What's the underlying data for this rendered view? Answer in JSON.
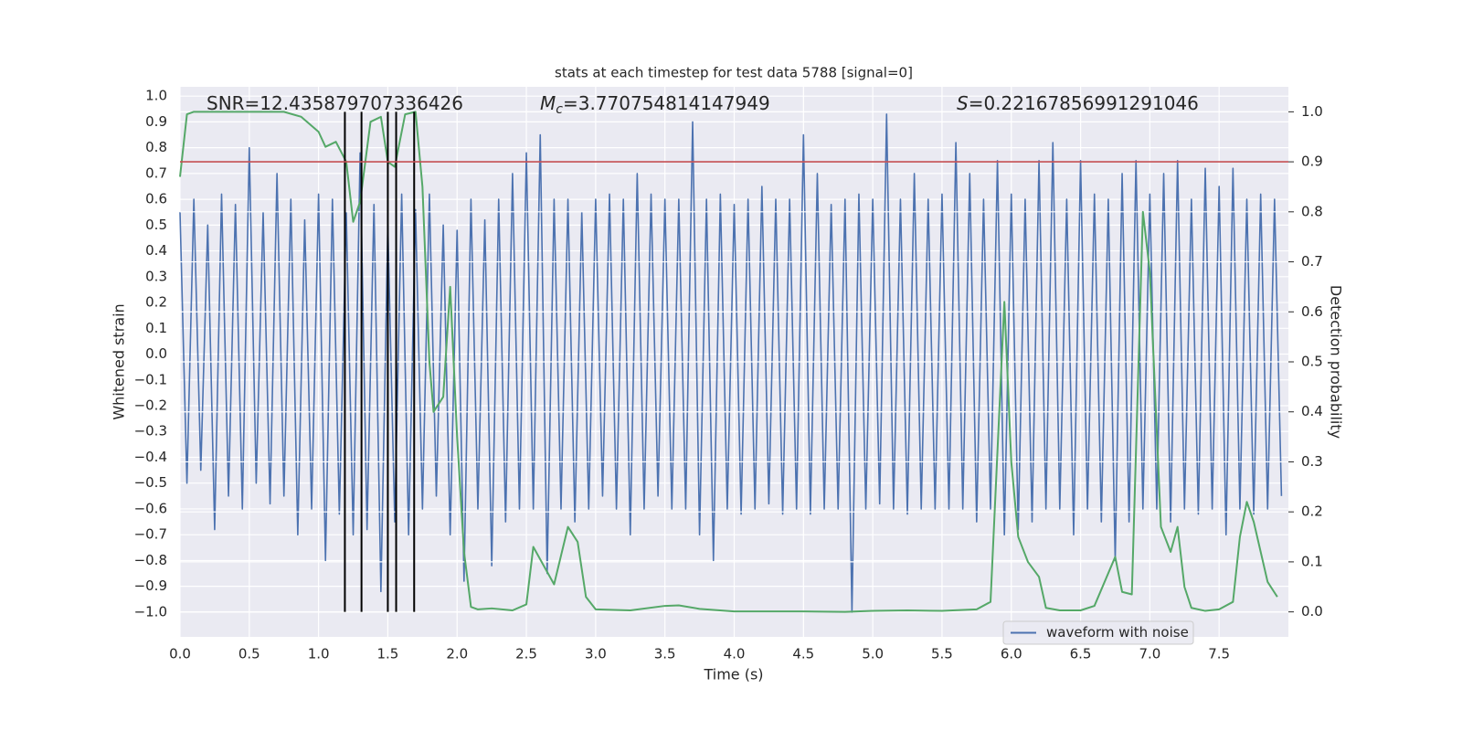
{
  "chart_data": {
    "type": "line",
    "title": "stats at each timestep for test data 5788 [signal=0]",
    "xlabel": "Time (s)",
    "ylabel": "Whitened strain",
    "y2label": "Detection probability",
    "xlim": [
      0,
      8
    ],
    "ylim": [
      -1.096,
      1.036
    ],
    "y2lim": [
      -0.05,
      1.05
    ],
    "xticks": [
      {
        "value": 0,
        "label": "0.0"
      },
      0.5,
      {
        "value": 1,
        "label": "1.0"
      },
      1.5,
      {
        "value": 2,
        "label": "2.0"
      },
      2.5,
      {
        "value": 3,
        "label": "3.0"
      },
      3.5,
      {
        "value": 4,
        "label": "4.0"
      },
      4.5,
      {
        "value": 5,
        "label": "5.0"
      },
      5.5,
      {
        "value": 6,
        "label": "6.0"
      },
      6.5,
      {
        "value": 7,
        "label": "7.0"
      },
      7.5
    ],
    "yticks": [
      {
        "value": -1,
        "label": "−1.0"
      },
      {
        "value": -0.9,
        "label": "−0.9"
      },
      {
        "value": -0.8,
        "label": "−0.8"
      },
      {
        "value": -0.7,
        "label": "−0.7"
      },
      {
        "value": -0.6,
        "label": "−0.6"
      },
      {
        "value": -0.5,
        "label": "−0.5"
      },
      {
        "value": -0.4,
        "label": "−0.4"
      },
      {
        "value": -0.3,
        "label": "−0.3"
      },
      {
        "value": -0.2,
        "label": "−0.2"
      },
      {
        "value": -0.1,
        "label": "−0.1"
      },
      {
        "value": 0,
        "label": "0.0"
      },
      0.1,
      0.2,
      0.3,
      0.4,
      0.5,
      0.6,
      0.7,
      0.8,
      0.9,
      {
        "value": 1,
        "label": "1.0"
      }
    ],
    "y2ticks": [
      {
        "value": 0,
        "label": "0.0"
      },
      0.1,
      0.2,
      0.3,
      0.4,
      0.5,
      0.6,
      0.7,
      0.8,
      0.9,
      {
        "value": 1,
        "label": "1.0"
      }
    ],
    "grid": true,
    "background": "#eaeaf2",
    "legend": "lower right",
    "series": [
      {
        "name": "waveform with noise",
        "color": "#4c72b0",
        "x": [
          0,
          0.05,
          0.1,
          0.15,
          0.2,
          0.25,
          0.3,
          0.35,
          0.4,
          0.45,
          0.5,
          0.55,
          0.6,
          0.65,
          0.7,
          0.75,
          0.8,
          0.85,
          0.9,
          0.95,
          1,
          1.05,
          1.1,
          1.15,
          1.2,
          1.25,
          1.3,
          1.35,
          1.4,
          1.45,
          1.5,
          1.55,
          1.6,
          1.65,
          1.7,
          1.75,
          1.8,
          1.85,
          1.9,
          1.95,
          2,
          2.05,
          2.1,
          2.15,
          2.2,
          2.25,
          2.3,
          2.35,
          2.4,
          2.45,
          2.5,
          2.55,
          2.6,
          2.65,
          2.7,
          2.75,
          2.8,
          2.85,
          2.9,
          2.95,
          3,
          3.05,
          3.1,
          3.15,
          3.2,
          3.25,
          3.3,
          3.35,
          3.4,
          3.45,
          3.5,
          3.55,
          3.6,
          3.65,
          3.7,
          3.75,
          3.8,
          3.85,
          3.9,
          3.95,
          4,
          4.05,
          4.1,
          4.15,
          4.2,
          4.25,
          4.3,
          4.35,
          4.4,
          4.45,
          4.5,
          4.55,
          4.6,
          4.65,
          4.7,
          4.75,
          4.8,
          4.85,
          4.9,
          4.95,
          5,
          5.05,
          5.1,
          5.15,
          5.2,
          5.25,
          5.3,
          5.35,
          5.4,
          5.45,
          5.5,
          5.55,
          5.6,
          5.65,
          5.7,
          5.75,
          5.8,
          5.85,
          5.9,
          5.95,
          6,
          6.05,
          6.1,
          6.15,
          6.2,
          6.25,
          6.3,
          6.35,
          6.4,
          6.45,
          6.5,
          6.55,
          6.6,
          6.65,
          6.7,
          6.75,
          6.8,
          6.85,
          6.9,
          6.95,
          7,
          7.05,
          7.1,
          7.15,
          7.2,
          7.25,
          7.3,
          7.35,
          7.4,
          7.45,
          7.5,
          7.55,
          7.6,
          7.65,
          7.7,
          7.75,
          7.8,
          7.85,
          7.9,
          7.95
        ],
        "values": [
          0.55,
          -0.5,
          0.6,
          -0.45,
          0.5,
          -0.68,
          0.62,
          -0.55,
          0.58,
          -0.6,
          0.8,
          -0.5,
          0.55,
          -0.58,
          0.7,
          -0.55,
          0.6,
          -0.7,
          0.52,
          -0.6,
          0.62,
          -0.8,
          0.6,
          -0.62,
          0.55,
          -0.7,
          0.78,
          -0.68,
          0.58,
          -0.92,
          0.5,
          -0.65,
          0.62,
          -0.7,
          0.56,
          -0.6,
          0.62,
          -0.55,
          0.5,
          -0.7,
          0.48,
          -0.88,
          0.6,
          -0.6,
          0.52,
          -0.82,
          0.6,
          -0.65,
          0.7,
          -0.6,
          0.78,
          -0.6,
          0.85,
          -0.85,
          0.6,
          -0.6,
          0.6,
          -0.65,
          0.55,
          -0.6,
          0.6,
          -0.55,
          0.62,
          -0.6,
          0.6,
          -0.7,
          0.7,
          -0.6,
          0.62,
          -0.55,
          0.6,
          -0.6,
          0.6,
          -0.6,
          0.9,
          -0.7,
          0.6,
          -0.8,
          0.62,
          -0.6,
          0.58,
          -0.62,
          0.6,
          -0.6,
          0.65,
          -0.58,
          0.6,
          -0.62,
          0.6,
          -0.6,
          0.85,
          -0.62,
          0.7,
          -0.6,
          0.58,
          -0.6,
          0.6,
          -1.0,
          0.62,
          -0.6,
          0.6,
          -0.58,
          0.93,
          -0.6,
          0.6,
          -0.62,
          0.7,
          -0.6,
          0.6,
          -0.6,
          0.62,
          -0.6,
          0.82,
          -0.6,
          0.7,
          -0.65,
          0.6,
          -0.6,
          0.75,
          -0.7,
          0.62,
          -0.68,
          0.6,
          -0.65,
          0.75,
          -0.6,
          0.82,
          -0.6,
          0.6,
          -0.7,
          0.75,
          -0.6,
          0.62,
          -0.65,
          0.6,
          -0.8,
          0.7,
          -0.65,
          0.75,
          -0.6,
          0.62,
          -0.6,
          0.7,
          -0.65,
          0.75,
          -0.6,
          0.6,
          -0.62,
          0.72,
          -0.6,
          0.65,
          -0.7,
          0.72,
          -0.6,
          0.6,
          -0.62,
          0.62,
          -0.6,
          0.6,
          -0.55
        ]
      },
      {
        "color": "#55a868",
        "axis": "y2",
        "x": [
          0,
          0.05,
          0.1,
          0.2,
          0.75,
          0.875,
          1,
          1.05,
          1.125,
          1.2,
          1.25,
          1.3,
          1.375,
          1.45,
          1.5,
          1.55,
          1.625,
          1.7,
          1.75,
          1.8,
          1.83,
          1.9,
          1.95,
          2,
          2.05,
          2.1,
          2.15,
          2.25,
          2.4,
          2.5,
          2.55,
          2.65,
          2.7,
          2.8,
          2.87,
          2.93,
          3,
          3.25,
          3.5,
          3.6,
          3.75,
          4,
          4.5,
          4.8,
          5,
          5.25,
          5.5,
          5.75,
          5.85,
          5.95,
          6,
          6.05,
          6.12,
          6.2,
          6.25,
          6.35,
          6.5,
          6.6,
          6.75,
          6.8,
          6.87,
          6.95,
          7,
          7.08,
          7.15,
          7.2,
          7.25,
          7.3,
          7.4,
          7.5,
          7.6,
          7.65,
          7.7,
          7.75,
          7.85,
          7.92
        ],
        "values": [
          0.87,
          0.995,
          1.0,
          1.0,
          1.0,
          0.99,
          0.96,
          0.93,
          0.94,
          0.9,
          0.78,
          0.82,
          0.98,
          0.99,
          0.9,
          0.89,
          0.995,
          1.0,
          0.85,
          0.5,
          0.4,
          0.43,
          0.65,
          0.35,
          0.12,
          0.01,
          0.005,
          0.007,
          0.003,
          0.015,
          0.13,
          0.08,
          0.055,
          0.17,
          0.14,
          0.03,
          0.005,
          0.003,
          0.012,
          0.013,
          0.006,
          0.001,
          0.001,
          0.0,
          0.002,
          0.003,
          0.002,
          0.005,
          0.02,
          0.62,
          0.3,
          0.15,
          0.1,
          0.07,
          0.008,
          0.003,
          0.003,
          0.012,
          0.11,
          0.04,
          0.035,
          0.8,
          0.68,
          0.17,
          0.12,
          0.17,
          0.05,
          0.008,
          0.002,
          0.005,
          0.02,
          0.15,
          0.22,
          0.18,
          0.06,
          0.03
        ]
      }
    ],
    "vlines": {
      "x": [
        1.19,
        1.31,
        1.5,
        1.56,
        1.69
      ],
      "ymin": 0,
      "ymax": 1,
      "axis": "y2",
      "color": "#000000"
    },
    "hlines": [
      {
        "y": 0.9,
        "axis": "y2",
        "color": "#c44e52"
      }
    ],
    "annotations": [
      {
        "text": "SNR=12.435879707336426"
      },
      {
        "symbol": "M",
        "subscript": "c",
        "text": "=3.770754814147949"
      },
      {
        "symbol": "S",
        "text": "=0.22167856991291046"
      }
    ]
  }
}
